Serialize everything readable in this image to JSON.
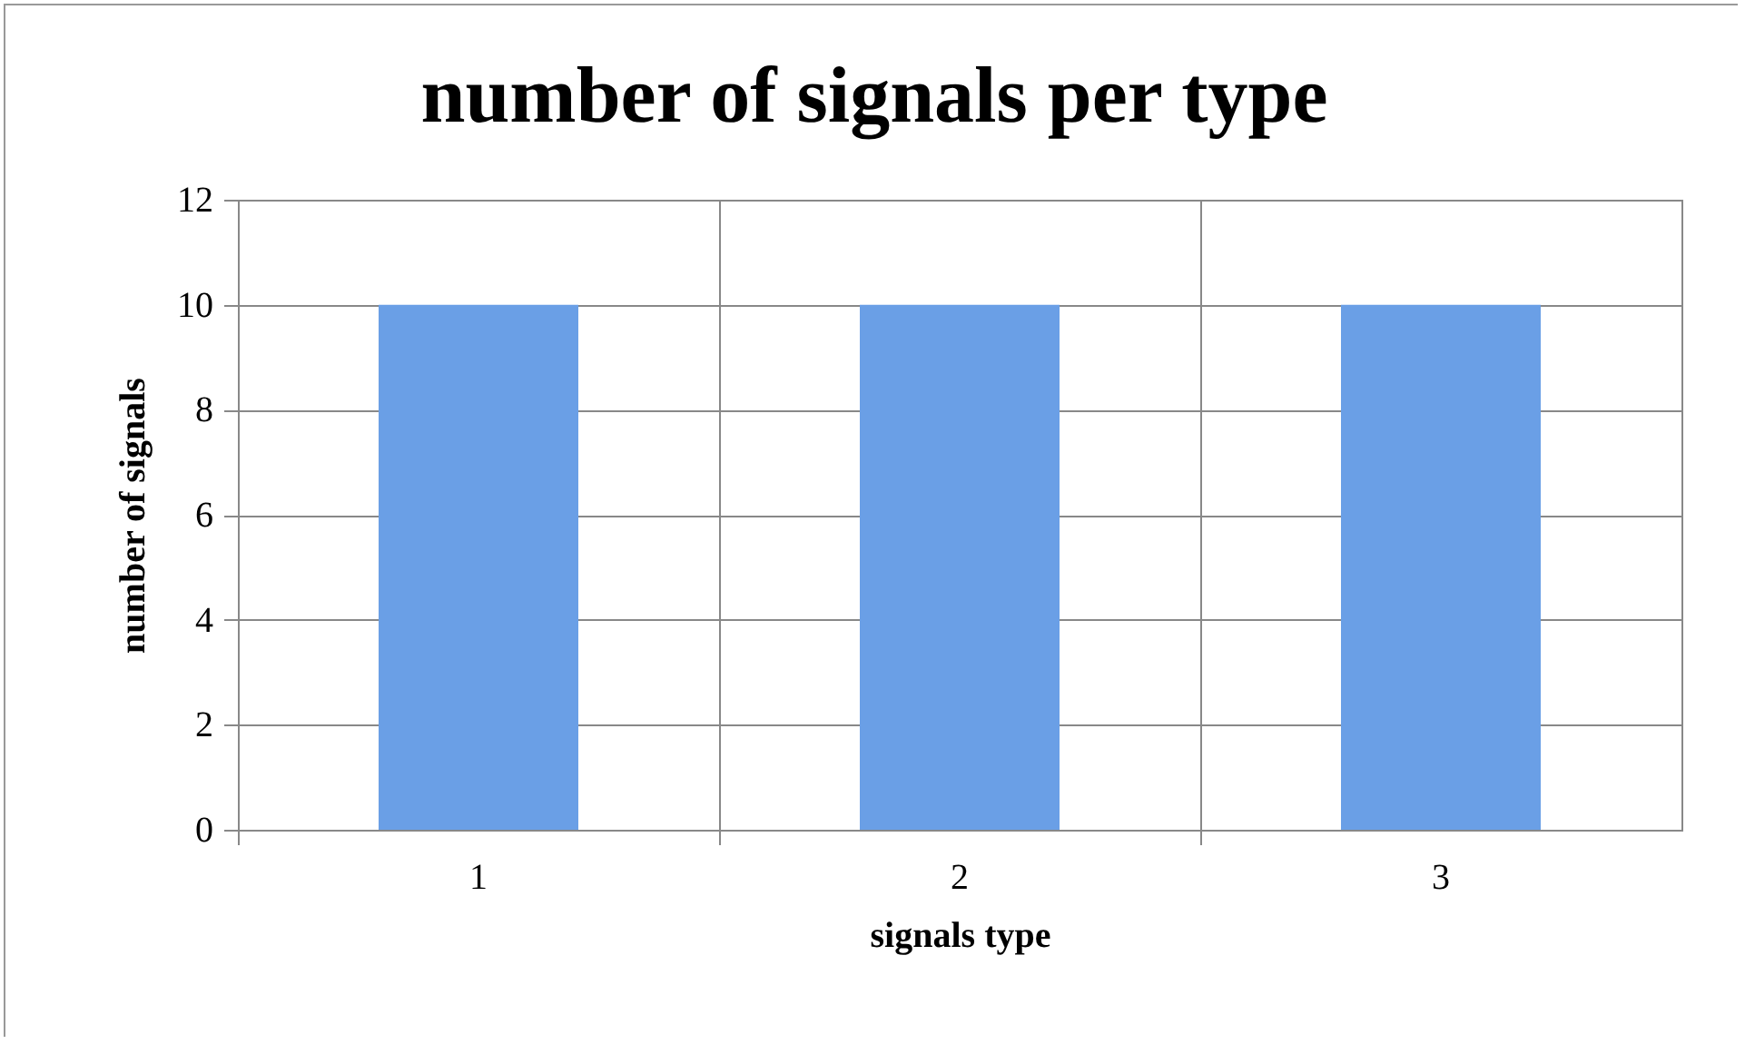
{
  "chart_data": {
    "type": "bar",
    "title": "number of signals per type",
    "xlabel": "signals type",
    "ylabel": "number of signals",
    "categories": [
      "1",
      "2",
      "3"
    ],
    "values": [
      10,
      10,
      10
    ],
    "color": "#6a9fe6",
    "ylim": [
      0,
      12
    ],
    "yticks": [
      0,
      2,
      4,
      6,
      8,
      10,
      12
    ],
    "grid": true
  }
}
